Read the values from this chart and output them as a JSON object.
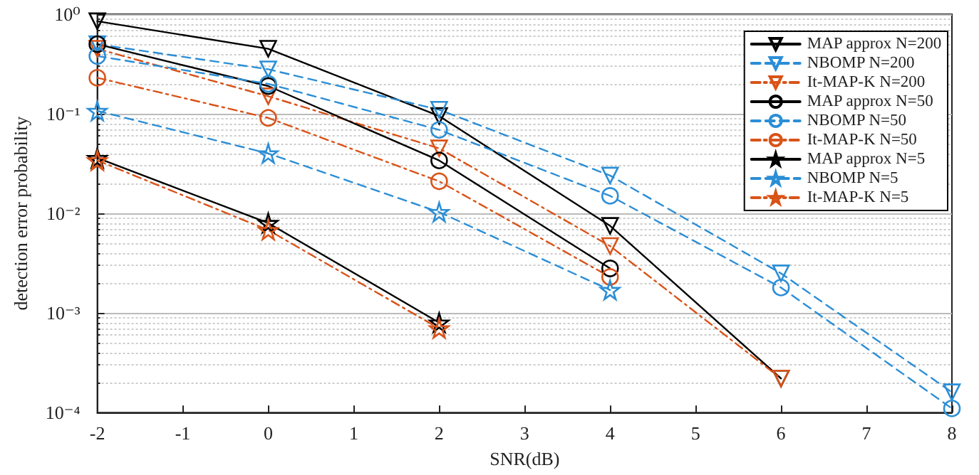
{
  "chart_data": {
    "type": "line",
    "xlabel": "SNR(dB)",
    "ylabel": "detection error probability",
    "x": [
      -2,
      0,
      2,
      4,
      6,
      8
    ],
    "xlim": [
      -2,
      8
    ],
    "xticks": [
      -2,
      -1,
      0,
      1,
      2,
      3,
      4,
      5,
      6,
      7,
      8
    ],
    "ylim": [
      0.0001,
      1
    ],
    "yticks": [
      {
        "value": 0.0001,
        "label": "10⁻⁴"
      },
      {
        "value": 0.001,
        "label": "10⁻³"
      },
      {
        "value": 0.01,
        "label": "10⁻²"
      },
      {
        "value": 0.1,
        "label": "10⁻¹"
      },
      {
        "value": 1,
        "label": "10⁰"
      }
    ],
    "log": "y",
    "grid": "y",
    "legend": "top right",
    "series": [
      {
        "name": "MAP approx N=200",
        "color": "#000000",
        "marker": "triangle",
        "line_style": "solid",
        "values": [
          0.85,
          0.45,
          0.095,
          0.0075,
          0.00022,
          null
        ]
      },
      {
        "name": "NBOMP N=200",
        "color": "#2b8ed6",
        "marker": "triangle",
        "line_style": "dashed",
        "values": [
          0.5,
          0.28,
          0.11,
          0.024,
          0.0025,
          0.00016
        ]
      },
      {
        "name": "It-MAP-K N=200",
        "color": "#d95319",
        "marker": "triangle",
        "line_style": "dotted",
        "values": [
          0.45,
          0.15,
          0.045,
          0.0047,
          0.00022,
          null
        ]
      },
      {
        "name": "MAP approx N=50",
        "color": "#000000",
        "marker": "circle",
        "line_style": "solid",
        "values": [
          0.5,
          0.19,
          0.034,
          0.0028,
          null,
          null
        ]
      },
      {
        "name": "NBOMP N=50",
        "color": "#2b8ed6",
        "marker": "circle",
        "line_style": "dashed",
        "values": [
          0.38,
          0.2,
          0.069,
          0.015,
          0.0018,
          0.00011
        ]
      },
      {
        "name": "It-MAP-K N=50",
        "color": "#d95319",
        "marker": "circle",
        "line_style": "dotted",
        "values": [
          0.23,
          0.091,
          0.021,
          0.0023,
          null,
          null
        ]
      },
      {
        "name": "MAP approx N=5",
        "color": "#000000",
        "marker": "star",
        "line_style": "solid",
        "values": [
          0.036,
          0.008,
          0.0008,
          null,
          null,
          null
        ]
      },
      {
        "name": "NBOMP N=5",
        "color": "#2b8ed6",
        "marker": "star",
        "line_style": "dashed",
        "values": [
          0.107,
          0.04,
          0.0103,
          0.0017,
          null,
          null
        ]
      },
      {
        "name": "It-MAP-K N=5",
        "color": "#d95319",
        "marker": "star",
        "line_style": "dotted",
        "values": [
          0.034,
          0.0068,
          0.0007,
          null,
          null,
          null
        ]
      }
    ]
  }
}
